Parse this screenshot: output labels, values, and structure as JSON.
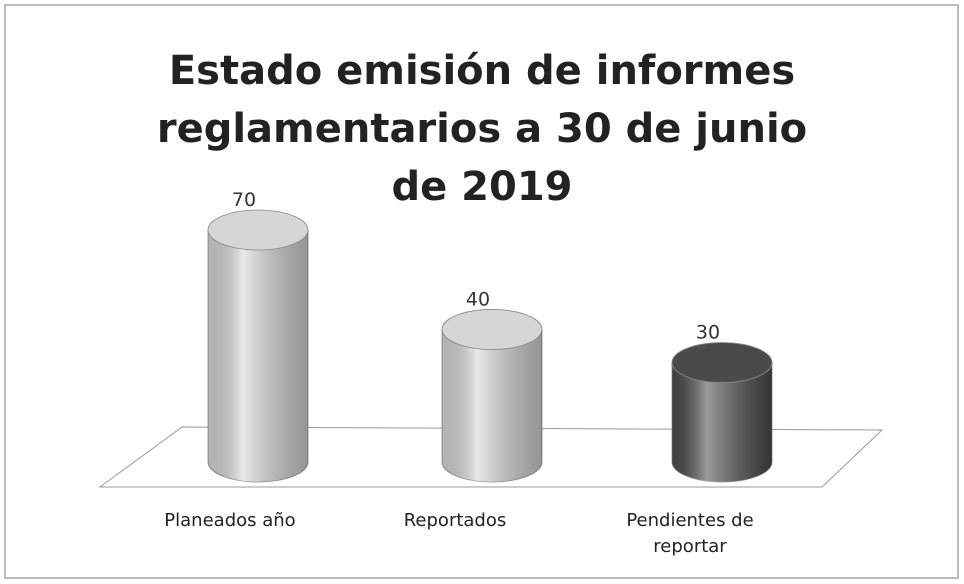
{
  "chart_data": {
    "type": "bar",
    "title": "Estado emisión de informes reglamentarios a 30 de junio de 2019",
    "categories": [
      "Planeados año",
      "Reportados",
      "Pendientes de reportar"
    ],
    "values": [
      70,
      40,
      30
    ],
    "colors": [
      "#d6d6d6",
      "#d6d6d6",
      "#4a4a4a"
    ]
  }
}
